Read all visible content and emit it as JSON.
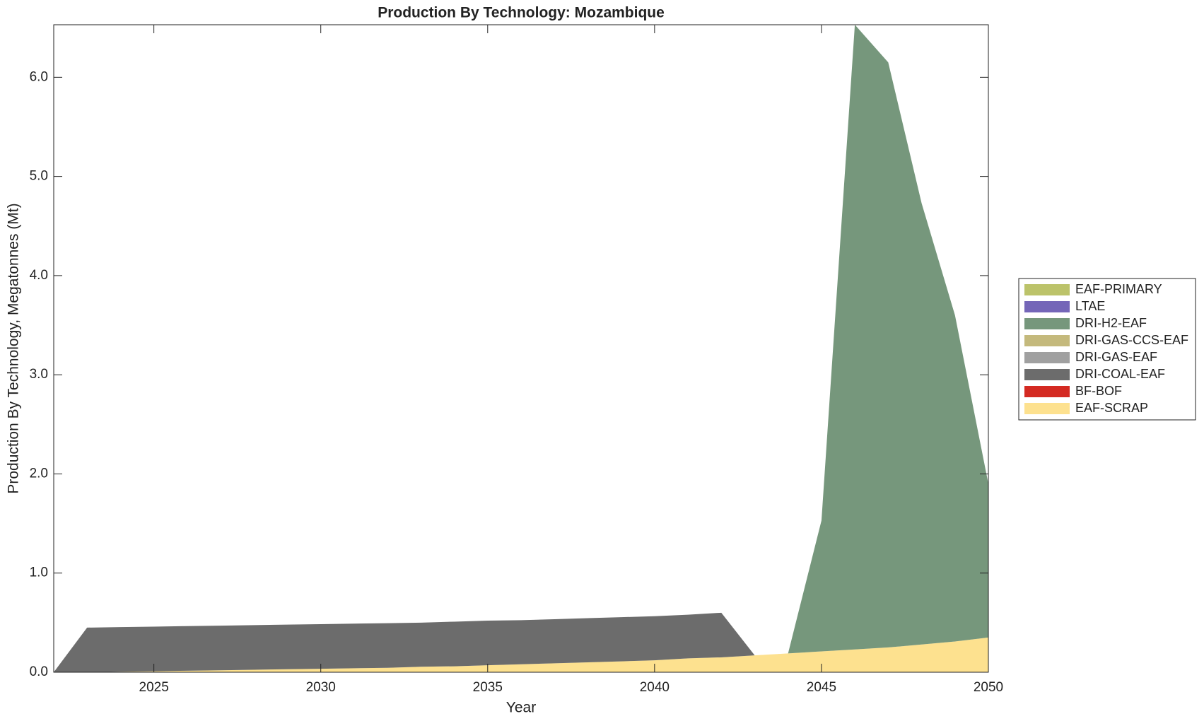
{
  "chart_data": {
    "type": "stacked_area",
    "title": "Production By Technology: Mozambique",
    "xlabel": "Year",
    "ylabel": "Production By Technology, Megatonnes (Mt)",
    "x": [
      2022,
      2023,
      2024,
      2025,
      2026,
      2027,
      2028,
      2029,
      2030,
      2031,
      2032,
      2033,
      2034,
      2035,
      2036,
      2037,
      2038,
      2039,
      2040,
      2041,
      2042,
      2043,
      2044,
      2045,
      2046,
      2047,
      2048,
      2049,
      2050
    ],
    "series": [
      {
        "name": "EAF-SCRAP",
        "color": "#fde18f",
        "values": [
          0,
          0,
          0.005,
          0.01,
          0.015,
          0.02,
          0.025,
          0.03,
          0.035,
          0.04,
          0.045,
          0.055,
          0.06,
          0.07,
          0.08,
          0.09,
          0.1,
          0.11,
          0.12,
          0.14,
          0.15,
          0.17,
          0.19,
          0.21,
          0.23,
          0.25,
          0.28,
          0.31,
          0.35
        ]
      },
      {
        "name": "BF-BOF",
        "color": "#d42a22",
        "values": [
          0,
          0,
          0,
          0,
          0,
          0,
          0,
          0,
          0,
          0,
          0,
          0,
          0,
          0,
          0,
          0,
          0,
          0,
          0,
          0,
          0,
          0,
          0,
          0,
          0,
          0,
          0,
          0,
          0
        ]
      },
      {
        "name": "DRI-COAL-EAF",
        "color": "#6c6c6c",
        "values": [
          0,
          0.45,
          0.45,
          0.45,
          0.45,
          0.45,
          0.45,
          0.45,
          0.45,
          0.45,
          0.45,
          0.445,
          0.45,
          0.45,
          0.445,
          0.445,
          0.445,
          0.445,
          0.445,
          0.44,
          0.45,
          0,
          0,
          0,
          0,
          0,
          0,
          0,
          0
        ]
      },
      {
        "name": "DRI-GAS-EAF",
        "color": "#a0a0a0",
        "values": [
          0,
          0,
          0,
          0,
          0,
          0,
          0,
          0,
          0,
          0,
          0,
          0,
          0,
          0,
          0,
          0,
          0,
          0,
          0,
          0,
          0,
          0,
          0,
          0,
          0,
          0,
          0,
          0,
          0
        ]
      },
      {
        "name": "DRI-GAS-CCS-EAF",
        "color": "#c4b97c",
        "values": [
          0,
          0,
          0,
          0,
          0,
          0,
          0,
          0,
          0,
          0,
          0,
          0,
          0,
          0,
          0,
          0,
          0,
          0,
          0,
          0,
          0,
          0,
          0,
          0,
          0,
          0,
          0,
          0,
          0
        ]
      },
      {
        "name": "DRI-H2-EAF",
        "color": "#76977c",
        "values": [
          0,
          0,
          0,
          0,
          0,
          0,
          0,
          0,
          0,
          0,
          0,
          0,
          0,
          0,
          0,
          0,
          0,
          0,
          0,
          0,
          0,
          0,
          0,
          1.32,
          6.3,
          5.9,
          4.45,
          3.29,
          1.55
        ]
      },
      {
        "name": "LTAE",
        "color": "#7466b8",
        "values": [
          0,
          0,
          0,
          0,
          0,
          0,
          0,
          0,
          0,
          0,
          0,
          0,
          0,
          0,
          0,
          0,
          0,
          0,
          0,
          0,
          0,
          0,
          0,
          0,
          0,
          0,
          0,
          0,
          0
        ]
      },
      {
        "name": "EAF-PRIMARY",
        "color": "#bcc36a",
        "values": [
          0,
          0,
          0,
          0,
          0,
          0,
          0,
          0,
          0,
          0,
          0,
          0,
          0,
          0,
          0,
          0,
          0,
          0,
          0,
          0,
          0,
          0,
          0,
          0,
          0,
          0,
          0,
          0,
          0
        ]
      }
    ],
    "xlim": [
      2022,
      2050
    ],
    "xticks": [
      2025,
      2030,
      2035,
      2040,
      2045,
      2050
    ],
    "ylim": [
      0,
      6.53
    ],
    "yticks": [
      {
        "value": 0,
        "label": "0.0"
      },
      {
        "value": 1,
        "label": "1.0"
      },
      {
        "value": 2,
        "label": "2.0"
      },
      {
        "value": 3,
        "label": "3.0"
      },
      {
        "value": 4,
        "label": "4.0"
      },
      {
        "value": 5,
        "label": "5.0"
      },
      {
        "value": 6,
        "label": "6.0"
      }
    ],
    "legend": "outside-right"
  }
}
